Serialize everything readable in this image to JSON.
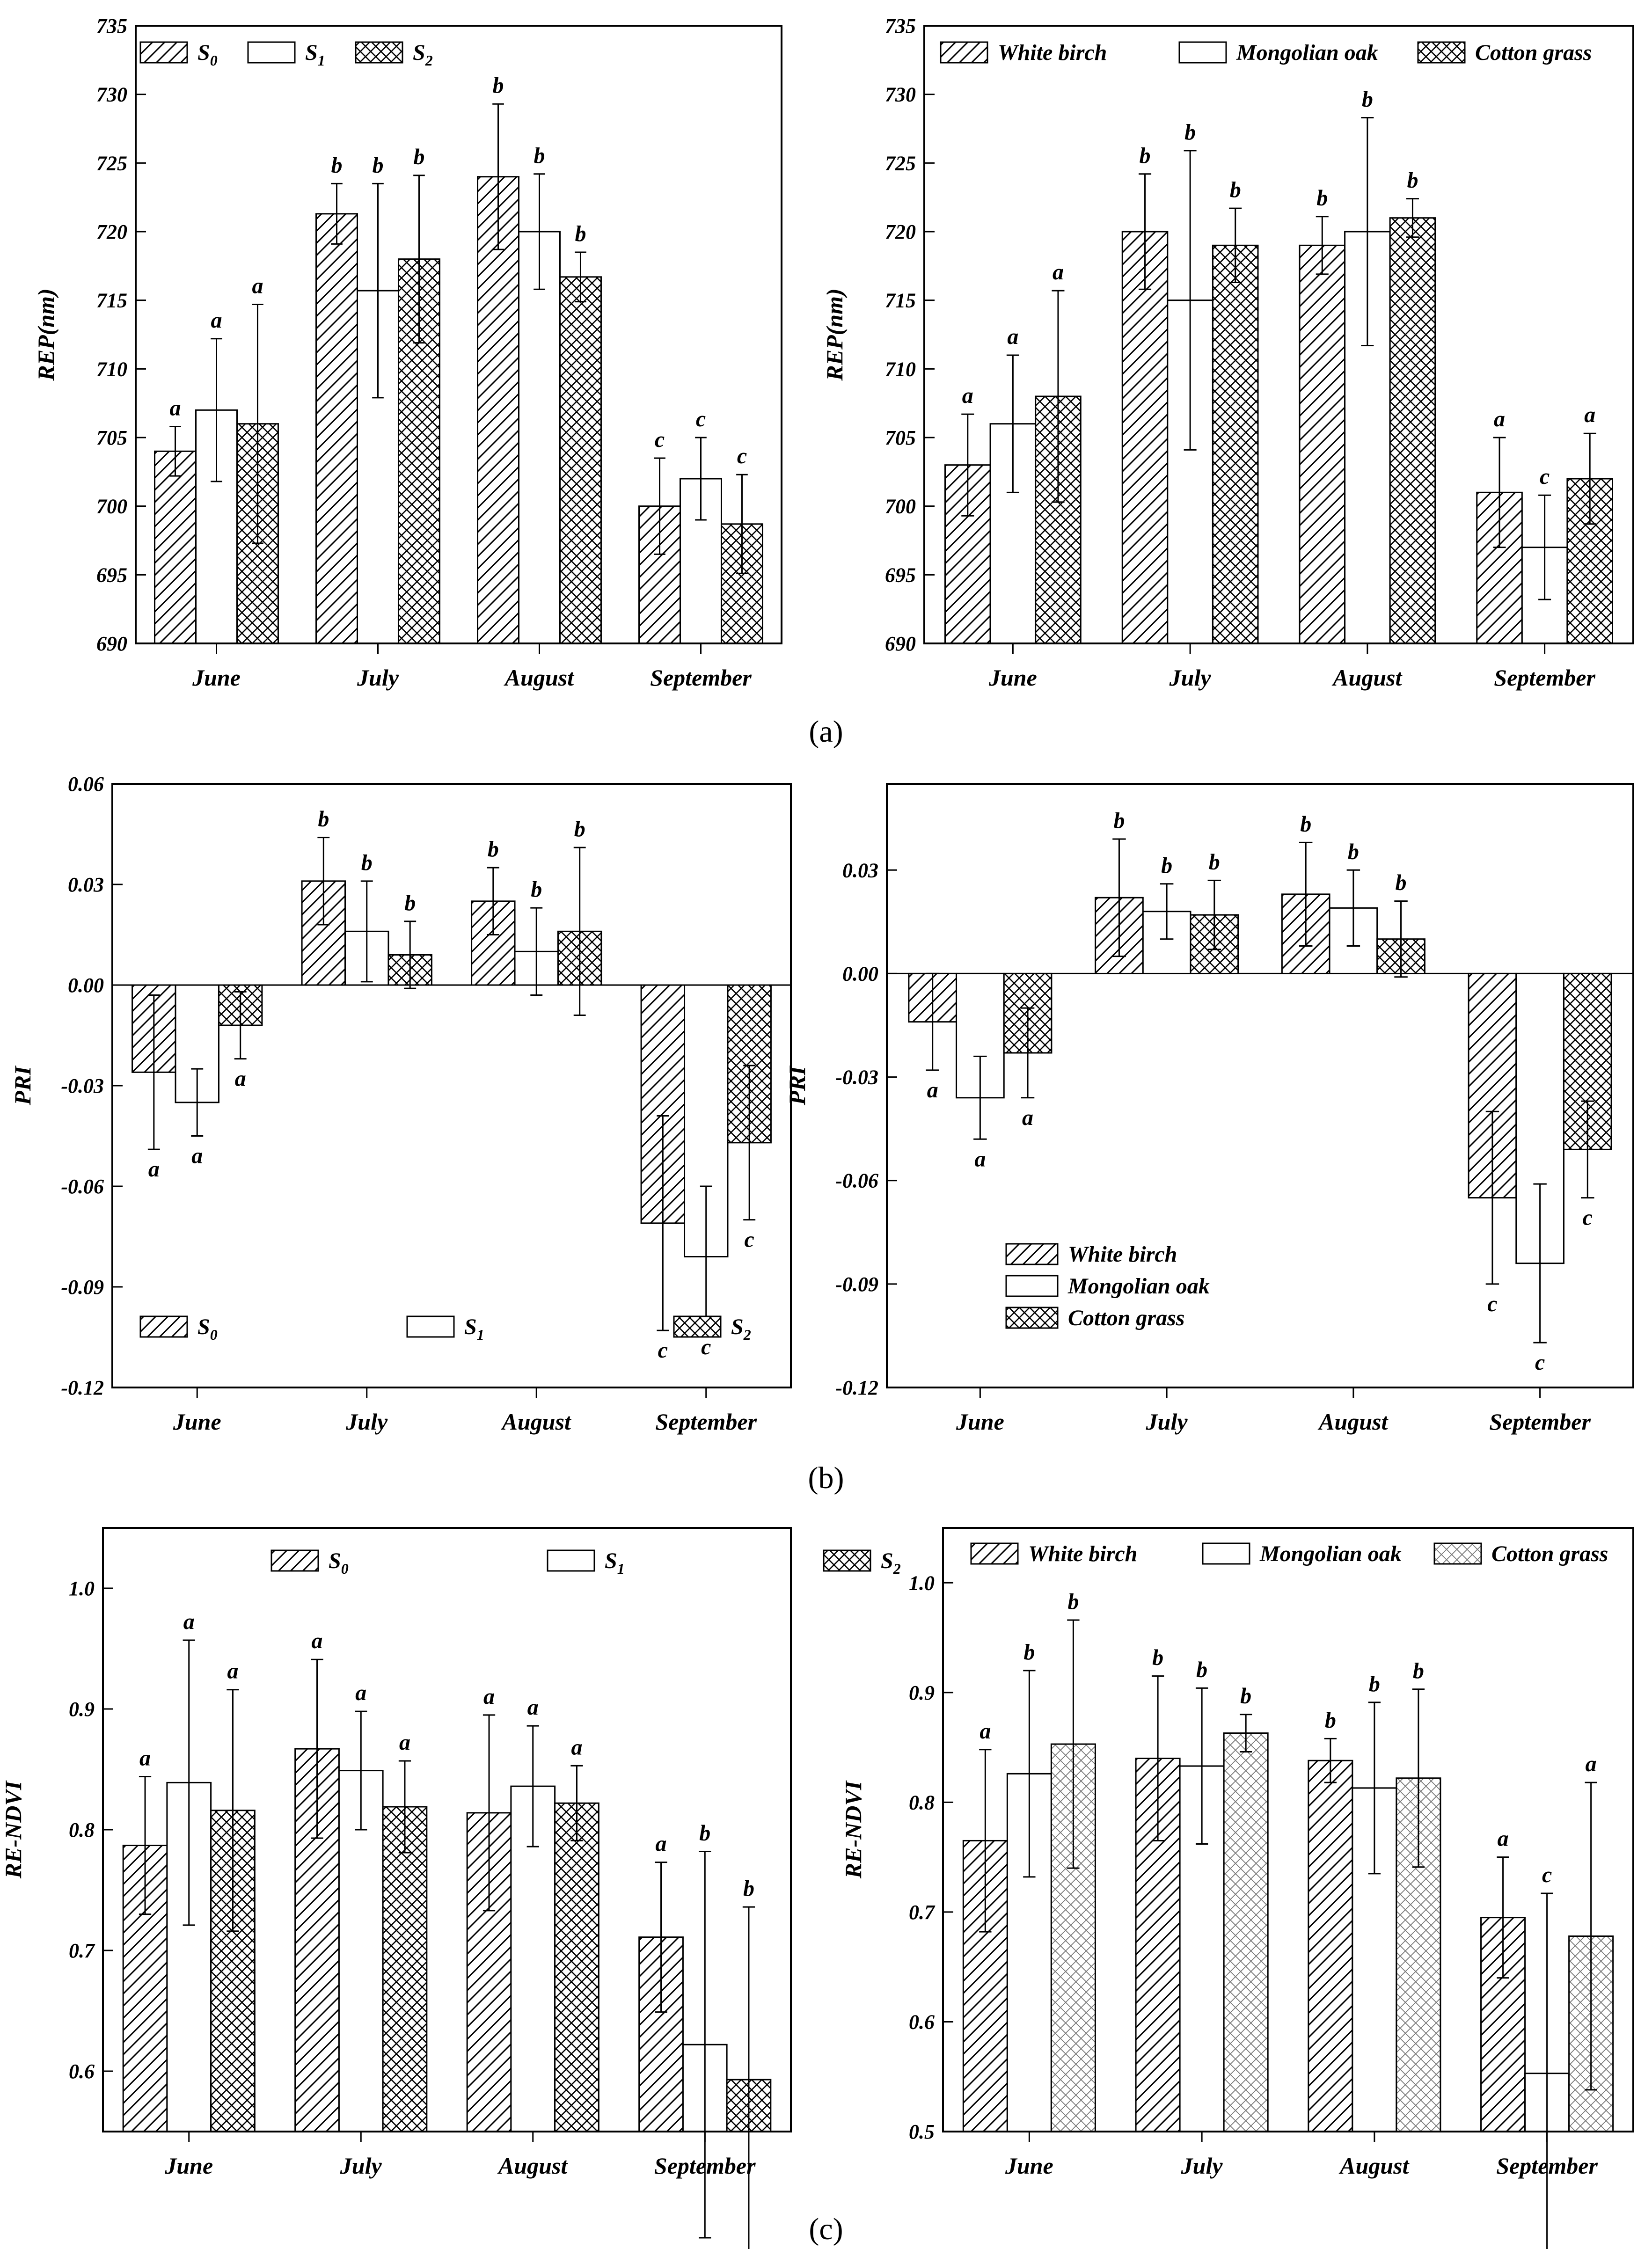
{
  "panel_labels": [
    "(a)",
    "(b)",
    "(c)"
  ],
  "legend_treatments": {
    "s0": "S",
    "s0_sub": "0",
    "s1": "S",
    "s1_sub": "1",
    "s2": "S",
    "s2_sub": "2"
  },
  "legend_species": [
    "White birch",
    "Mongolian oak",
    "Cotton grass"
  ],
  "chart_data": [
    {
      "id": "a-left",
      "type": "bar",
      "ylabel": "REP(nm)",
      "xlabel": "",
      "categories": [
        "June",
        "July",
        "August",
        "September"
      ],
      "ylim": [
        690,
        735
      ],
      "yticks": [
        690,
        695,
        700,
        705,
        710,
        715,
        720,
        725,
        730,
        735
      ],
      "ytick_labels": [
        "690",
        "695",
        "700",
        "705",
        "710",
        "715",
        "720",
        "725",
        "730",
        "735"
      ],
      "legend": "treatments",
      "legend_position": "top-left",
      "series": [
        {
          "name": "S0",
          "pattern": "hatch",
          "values": [
            704,
            721.3,
            724,
            700
          ],
          "errors": [
            1.8,
            2.2,
            5.3,
            3.5
          ],
          "letters": [
            "a",
            "b",
            "b",
            "c"
          ]
        },
        {
          "name": "S1",
          "pattern": "blank",
          "values": [
            707,
            715.7,
            720,
            702
          ],
          "errors": [
            5.2,
            7.8,
            4.2,
            3.0
          ],
          "letters": [
            "a",
            "b",
            "b",
            "c"
          ]
        },
        {
          "name": "S2",
          "pattern": "cross",
          "values": [
            706,
            718,
            716.7,
            698.7
          ],
          "errors": [
            8.7,
            6.1,
            1.8,
            3.6
          ],
          "letters": [
            "a",
            "b",
            "b",
            "c"
          ]
        }
      ]
    },
    {
      "id": "a-right",
      "type": "bar",
      "ylabel": "REP(nm)",
      "xlabel": "",
      "categories": [
        "June",
        "July",
        "August",
        "September"
      ],
      "ylim": [
        690,
        735
      ],
      "yticks": [
        690,
        695,
        700,
        705,
        710,
        715,
        720,
        725,
        730,
        735
      ],
      "ytick_labels": [
        "690",
        "695",
        "700",
        "705",
        "710",
        "715",
        "720",
        "725",
        "730",
        "735"
      ],
      "legend": "species",
      "legend_position": "top",
      "series": [
        {
          "name": "White birch",
          "pattern": "hatch",
          "values": [
            703,
            720,
            719,
            701
          ],
          "errors": [
            3.7,
            4.2,
            2.1,
            4.0
          ],
          "letters": [
            "a",
            "b",
            "b",
            "a"
          ]
        },
        {
          "name": "Mongolian oak",
          "pattern": "blank",
          "values": [
            706,
            715,
            720,
            697
          ],
          "errors": [
            5.0,
            10.9,
            8.3,
            3.8
          ],
          "letters": [
            "a",
            "b",
            "b",
            "c"
          ]
        },
        {
          "name": "Cotton grass",
          "pattern": "cross",
          "values": [
            708,
            719,
            721,
            702
          ],
          "errors": [
            7.7,
            2.7,
            1.4,
            3.3
          ],
          "letters": [
            "a",
            "b",
            "b",
            "a"
          ]
        }
      ]
    },
    {
      "id": "b-left",
      "type": "bar",
      "ylabel": "PRI",
      "xlabel": "",
      "categories": [
        "June",
        "July",
        "August",
        "September"
      ],
      "ylim": [
        -0.12,
        0.06
      ],
      "yticks": [
        -0.12,
        -0.09,
        -0.06,
        -0.03,
        0.0,
        0.03,
        0.06
      ],
      "ytick_labels": [
        "-0.12",
        "-0.09",
        "-0.06",
        "-0.03",
        "0.00",
        "0.03",
        "0.06"
      ],
      "legend": "treatments",
      "legend_position": "bottom-left",
      "series": [
        {
          "name": "S0",
          "pattern": "hatch",
          "values": [
            -0.026,
            0.031,
            0.025,
            -0.071
          ],
          "errors": [
            0.023,
            0.013,
            0.01,
            0.032
          ],
          "letters": [
            "a",
            "b",
            "b",
            "c"
          ]
        },
        {
          "name": "S1",
          "pattern": "blank",
          "values": [
            -0.035,
            0.016,
            0.01,
            -0.081
          ],
          "errors": [
            0.01,
            0.015,
            0.013,
            0.021
          ],
          "letters": [
            "a",
            "b",
            "b",
            "c"
          ]
        },
        {
          "name": "S2",
          "pattern": "cross",
          "values": [
            -0.012,
            0.009,
            0.016,
            -0.047
          ],
          "errors": [
            0.01,
            0.01,
            0.025,
            0.023
          ],
          "letters": [
            "a",
            "b",
            "b",
            "c"
          ]
        }
      ]
    },
    {
      "id": "b-right",
      "type": "bar",
      "ylabel": "PRI",
      "xlabel": "",
      "categories": [
        "June",
        "July",
        "August",
        "September"
      ],
      "ylim": [
        -0.12,
        0.055
      ],
      "yticks": [
        -0.12,
        -0.09,
        -0.06,
        -0.03,
        0.0,
        0.03
      ],
      "ytick_labels": [
        "-0.12",
        "-0.09",
        "-0.06",
        "-0.03",
        "0.00",
        "0.03"
      ],
      "legend": "species-vertical",
      "legend_position": "bottom-left",
      "series": [
        {
          "name": "White birch",
          "pattern": "hatch",
          "values": [
            -0.014,
            0.022,
            0.023,
            -0.065
          ],
          "errors": [
            0.014,
            0.017,
            0.015,
            0.025
          ],
          "letters": [
            "a",
            "b",
            "b",
            "c"
          ]
        },
        {
          "name": "Mongolian oak",
          "pattern": "blank",
          "values": [
            -0.036,
            0.018,
            0.019,
            -0.084
          ],
          "errors": [
            0.012,
            0.008,
            0.011,
            0.023
          ],
          "letters": [
            "a",
            "b",
            "b",
            "c"
          ]
        },
        {
          "name": "Cotton grass",
          "pattern": "cross",
          "values": [
            -0.023,
            0.017,
            0.01,
            -0.051
          ],
          "errors": [
            0.013,
            0.01,
            0.011,
            0.014
          ],
          "letters": [
            "a",
            "b",
            "b",
            "c"
          ]
        }
      ]
    },
    {
      "id": "c-left",
      "type": "bar",
      "ylabel": "RE-NDVI",
      "xlabel": "",
      "categories": [
        "June",
        "July",
        "August",
        "September"
      ],
      "ylim": [
        0.55,
        1.05
      ],
      "yticks": [
        0.6,
        0.7,
        0.8,
        0.9,
        1.0
      ],
      "ytick_labels": [
        "0.6",
        "0.7",
        "0.8",
        "0.9",
        "1.0"
      ],
      "legend": "treatments",
      "legend_position": "top",
      "series": [
        {
          "name": "S0",
          "pattern": "hatch",
          "values": [
            0.787,
            0.867,
            0.814,
            0.711
          ],
          "errors": [
            0.057,
            0.074,
            0.081,
            0.062
          ],
          "letters": [
            "a",
            "a",
            "a",
            "a"
          ]
        },
        {
          "name": "S1",
          "pattern": "blank",
          "values": [
            0.839,
            0.849,
            0.836,
            0.622
          ],
          "errors": [
            0.118,
            0.049,
            0.05,
            0.16
          ],
          "letters": [
            "a",
            "a",
            "a",
            "b"
          ]
        },
        {
          "name": "S2",
          "pattern": "cross",
          "values": [
            0.816,
            0.819,
            0.822,
            0.593
          ],
          "errors": [
            0.1,
            0.038,
            0.031,
            0.143
          ],
          "letters": [
            "a",
            "a",
            "a",
            "b"
          ]
        }
      ]
    },
    {
      "id": "c-right",
      "type": "bar",
      "ylabel": "RE-NDVI",
      "xlabel": "",
      "categories": [
        "June",
        "July",
        "August",
        "September"
      ],
      "ylim": [
        0.5,
        1.05
      ],
      "yticks": [
        0.5,
        0.6,
        0.7,
        0.8,
        0.9,
        1.0
      ],
      "ytick_labels": [
        "0.5",
        "0.6",
        "0.7",
        "0.8",
        "0.9",
        "1.0"
      ],
      "legend": "species",
      "legend_position": "top",
      "series": [
        {
          "name": "White birch",
          "pattern": "hatch",
          "values": [
            0.765,
            0.84,
            0.838,
            0.695
          ],
          "errors": [
            0.083,
            0.075,
            0.02,
            0.055
          ],
          "letters": [
            "a",
            "b",
            "b",
            "a"
          ]
        },
        {
          "name": "Mongolian oak",
          "pattern": "blank",
          "values": [
            0.826,
            0.833,
            0.813,
            0.553
          ],
          "errors": [
            0.094,
            0.071,
            0.078,
            0.164
          ],
          "letters": [
            "b",
            "b",
            "b",
            "c"
          ]
        },
        {
          "name": "Cotton grass",
          "pattern": "lightcross",
          "values": [
            0.853,
            0.863,
            0.822,
            0.678
          ],
          "errors": [
            0.113,
            0.017,
            0.081,
            0.14
          ],
          "letters": [
            "b",
            "b",
            "b",
            "a"
          ]
        }
      ]
    }
  ]
}
